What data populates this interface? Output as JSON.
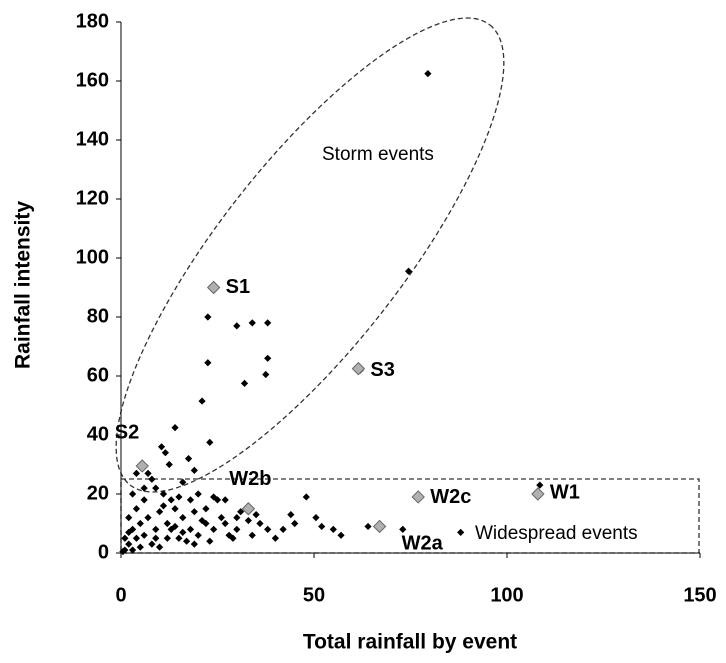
{
  "chart_data": {
    "type": "scatter",
    "xlabel": "Total rainfall by event",
    "ylabel": "Rainfall intensity",
    "annotations": [
      "Storm events",
      "Widespread events"
    ],
    "xlim": [
      0,
      150
    ],
    "xticks": [
      0,
      50,
      100,
      150
    ],
    "ylim": [
      0,
      180
    ],
    "yticks": [
      0,
      20,
      40,
      60,
      80,
      100,
      120,
      140,
      160,
      180
    ],
    "series": [
      {
        "color": "#000000",
        "x": [
          79.5,
          74.5,
          22.5,
          30,
          34,
          38,
          38,
          22.5,
          37.5,
          32,
          62,
          21,
          14,
          23,
          10.5,
          11.5,
          12.5,
          17.5,
          19,
          108.5,
          88,
          73,
          64,
          55,
          50.5,
          52,
          48,
          40,
          38,
          36,
          35,
          30,
          28,
          26,
          25,
          24,
          27,
          31,
          33,
          45,
          29,
          22,
          20,
          18,
          16,
          15,
          14,
          12,
          11,
          10,
          9,
          8,
          8,
          7,
          6,
          6,
          5,
          5,
          4,
          4,
          3,
          3,
          2,
          2,
          1,
          1,
          0.5,
          7,
          9,
          13,
          17,
          19,
          21,
          23,
          16,
          15,
          12,
          10,
          6,
          11,
          13,
          18,
          20,
          24,
          27,
          30,
          34,
          42,
          44,
          57,
          3,
          4,
          2,
          9,
          14,
          16,
          19,
          22
        ],
        "y": [
          162.5,
          95.5,
          80,
          77,
          78,
          78,
          66,
          64.5,
          60.5,
          57.5,
          62,
          51.5,
          42.5,
          37.5,
          36,
          34,
          30,
          32,
          28,
          23,
          7,
          8,
          9,
          8,
          12,
          9,
          19,
          5,
          8,
          10,
          13,
          8,
          6,
          12,
          18,
          19,
          18,
          14,
          11,
          10,
          5,
          10,
          6,
          8,
          12,
          5,
          15,
          10,
          20,
          14,
          8,
          25,
          3,
          12,
          18,
          6,
          10,
          2,
          15,
          5,
          8,
          1,
          3,
          12,
          1,
          5,
          0.5,
          27,
          22,
          8,
          4,
          14,
          11,
          4,
          24,
          19,
          5,
          2,
          22,
          16,
          18,
          18,
          20,
          8,
          10,
          12,
          6,
          8,
          13,
          6,
          20,
          27,
          7,
          5,
          9,
          7,
          3,
          15
        ]
      },
      {
        "color": "#b0b0b0",
        "x": [
          24,
          5.5,
          61.5,
          108,
          67,
          33,
          77
        ],
        "y": [
          90,
          29.5,
          62.5,
          20,
          9,
          15,
          19
        ],
        "labels": [
          "S1",
          "S2",
          "S3",
          "W1",
          "W2a",
          "W2b",
          "W2c"
        ]
      }
    ]
  }
}
